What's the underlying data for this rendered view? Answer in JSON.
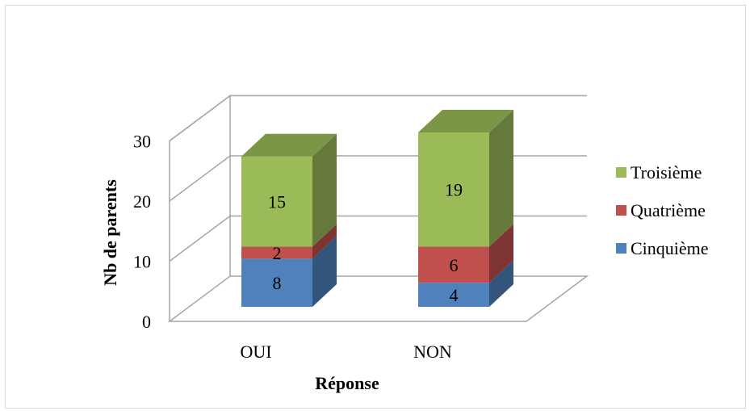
{
  "chart_data": {
    "type": "bar",
    "stacked": true,
    "three_d": true,
    "categories": [
      "OUI",
      "NON"
    ],
    "series": [
      {
        "name": "Cinquième",
        "values": [
          8,
          4
        ],
        "color": "#4f81bd"
      },
      {
        "name": "Quatrième",
        "values": [
          2,
          6
        ],
        "color": "#c0504d"
      },
      {
        "name": "Troisième",
        "values": [
          15,
          19
        ],
        "color": "#9bbb59"
      }
    ],
    "xlabel": "Réponse",
    "ylabel": "Nb de parents",
    "yticks": [
      "0",
      "10",
      "20",
      "30"
    ],
    "ylim": [
      0,
      30
    ],
    "grid": true,
    "legend_position": "right"
  }
}
